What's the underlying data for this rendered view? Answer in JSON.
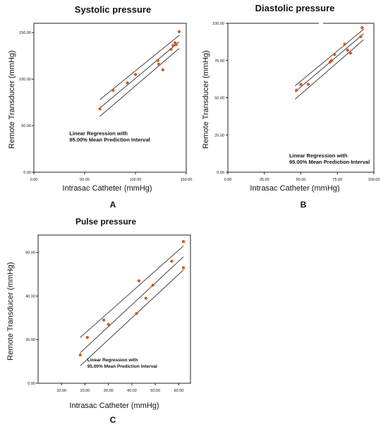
{
  "chart_data": [
    {
      "panel_label": "A",
      "type": "scatter",
      "title": "Systolic pressure",
      "xlabel": "Intrasac Catheter (mmHg)",
      "ylabel": "Remote Transducer (mmHg)",
      "xlim": [
        0,
        150
      ],
      "ylim": [
        0,
        160
      ],
      "x_ticks": [
        "0.00",
        "50.00",
        "100.00",
        "150.00"
      ],
      "y_ticks": [
        "0.00",
        "50.00",
        "100.00",
        "150.00"
      ],
      "x_tick_values": [
        0,
        50,
        100,
        150
      ],
      "y_tick_values": [
        0,
        50,
        100,
        150
      ],
      "annotation": [
        "Linear Regression with",
        "95.00% Mean Prediction Interval"
      ],
      "annotation_at": [
        35,
        40
      ],
      "points": [
        [
          65,
          68
        ],
        [
          78,
          88
        ],
        [
          92,
          96
        ],
        [
          100,
          105
        ],
        [
          122,
          120
        ],
        [
          123,
          116
        ],
        [
          127,
          110
        ],
        [
          135,
          132
        ],
        [
          137,
          136
        ],
        [
          139,
          139
        ],
        [
          140,
          137
        ],
        [
          143,
          151
        ]
      ],
      "fit": {
        "x": [
          65,
          143
        ],
        "center": [
          69,
          140
        ],
        "upper": [
          78,
          147
        ],
        "lower": [
          60,
          133
        ]
      }
    },
    {
      "panel_label": "B",
      "type": "scatter",
      "title": "Diastolic pressure",
      "xlabel": "Intrasac Catheter (mmHg)",
      "ylabel": "Remote Transducer (mmHg)",
      "xlim": [
        0,
        100
      ],
      "ylim": [
        0,
        100
      ],
      "x_ticks": [
        "0.00",
        "25.00",
        "50.00",
        "75.00",
        "100.00"
      ],
      "y_ticks": [
        "0.00",
        "25.00",
        "50.00",
        "75.00",
        "100.00"
      ],
      "x_tick_values": [
        0,
        25,
        50,
        75,
        100
      ],
      "y_tick_values": [
        0,
        25,
        50,
        75,
        100
      ],
      "annotation": [
        "Linear Regression with",
        "95.00% Mean Prediction Interval"
      ],
      "annotation_at": [
        42,
        10
      ],
      "points": [
        [
          47,
          55
        ],
        [
          50,
          59
        ],
        [
          55,
          59
        ],
        [
          70,
          74
        ],
        [
          71,
          75
        ],
        [
          73,
          79
        ],
        [
          80,
          86
        ],
        [
          82,
          82
        ],
        [
          84,
          80
        ],
        [
          91,
          91
        ],
        [
          92,
          97
        ]
      ],
      "fit": {
        "x": [
          46,
          93
        ],
        "center": [
          54,
          93
        ],
        "upper": [
          58,
          96
        ],
        "lower": [
          49,
          89
        ]
      }
    },
    {
      "panel_label": "C",
      "type": "scatter",
      "title": "Pulse pressure",
      "xlabel": "Intrasac Catheter (mmHg)",
      "ylabel": "Remote Transducer (mmHg)",
      "xlim": [
        0,
        65
      ],
      "ylim": [
        0,
        68
      ],
      "x_ticks": [
        "10.00",
        "20.00",
        "30.00",
        "40.00",
        "50.00",
        "60.00"
      ],
      "y_ticks": [
        "0.00",
        "20.00",
        "40.00",
        "60.00"
      ],
      "x_tick_values": [
        10,
        20,
        30,
        40,
        50,
        60
      ],
      "y_tick_values": [
        0,
        20,
        40,
        60
      ],
      "annotation": [
        "Linear Regression with",
        "95.00% Mean Prediction Interval"
      ],
      "annotation_at": [
        21,
        10
      ],
      "points": [
        [
          18,
          13
        ],
        [
          21,
          21
        ],
        [
          28,
          29
        ],
        [
          30,
          27
        ],
        [
          42,
          32
        ],
        [
          43,
          47
        ],
        [
          46,
          39
        ],
        [
          49,
          45
        ],
        [
          57,
          56
        ],
        [
          62,
          65
        ],
        [
          62,
          53
        ]
      ],
      "fit": {
        "x": [
          18,
          62
        ],
        "center": [
          14,
          58
        ],
        "upper": [
          21,
          63
        ],
        "lower": [
          8,
          52
        ]
      }
    }
  ]
}
